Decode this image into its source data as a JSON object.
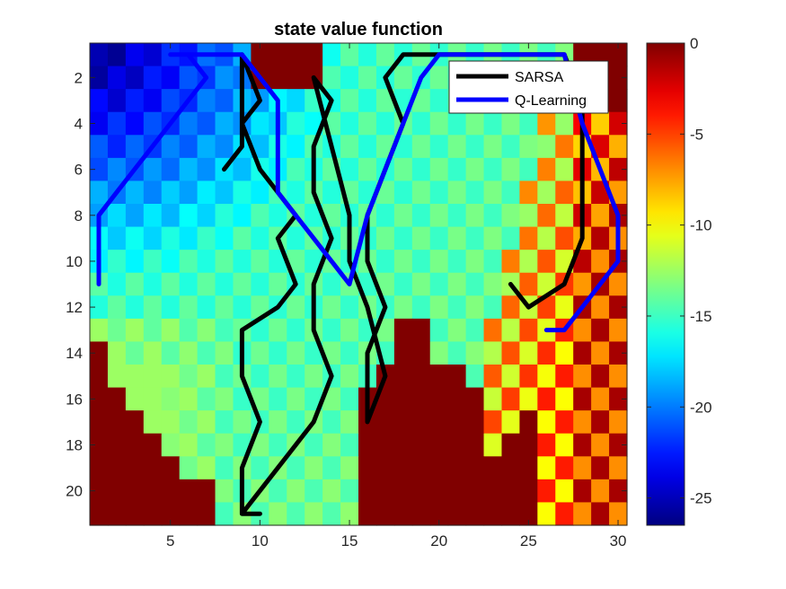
{
  "chart_data": {
    "type": "heatmap",
    "title": "state value function",
    "xlabel": "",
    "ylabel": "",
    "grid_cols": 30,
    "grid_rows": 21,
    "xlim": [
      0.5,
      30.5
    ],
    "ylim": [
      21.5,
      0.5
    ],
    "y_reversed": true,
    "x_ticks": [
      5,
      10,
      15,
      20,
      25,
      30
    ],
    "y_ticks": [
      2,
      4,
      6,
      8,
      10,
      12,
      14,
      16,
      18,
      20
    ],
    "colorbar": {
      "colormap": "jet",
      "range": [
        -26.5,
        0
      ],
      "ticks": [
        0,
        -5,
        -10,
        -15,
        -20,
        -25
      ]
    },
    "value_field_approx": {
      "description": "estimated from colormap",
      "region_walls_value": 0,
      "left_upper_region_min": -26,
      "center_region_approx": -15,
      "right_region_checkerboard": [
        -3,
        -11
      ]
    },
    "legend": {
      "location": "top-right",
      "entries": [
        "SARSA",
        "Q-Learning"
      ]
    },
    "series": [
      {
        "name": "SARSA",
        "color": "#000000",
        "x": [
          8,
          9,
          9,
          10,
          9,
          9,
          9,
          9,
          10,
          12,
          11,
          12,
          11,
          9,
          9,
          10,
          9,
          9,
          10,
          9,
          9,
          11,
          13,
          14,
          13,
          13,
          14,
          13,
          13,
          14,
          13,
          13,
          15,
          15,
          16,
          17,
          16,
          16,
          17,
          16,
          16,
          17,
          18,
          17,
          18,
          19,
          19,
          20,
          19,
          27,
          28,
          28,
          28,
          27,
          25,
          24
        ],
        "y": [
          6,
          5,
          4,
          3,
          1,
          1,
          3,
          4,
          6,
          8,
          9,
          11,
          12,
          13,
          15,
          17,
          19,
          21,
          21,
          21,
          21,
          19,
          17,
          15,
          13,
          11,
          9,
          7,
          5,
          3,
          2,
          2,
          8,
          10,
          12,
          15,
          17,
          14,
          12,
          10,
          8,
          6,
          4,
          2,
          1,
          1,
          1,
          1,
          1,
          1,
          3,
          5,
          9,
          11,
          12,
          11
        ]
      },
      {
        "name": "Q-Learning",
        "color": "#0000ff",
        "x": [
          1,
          1,
          2,
          3,
          4,
          5,
          6,
          7,
          6,
          5,
          9,
          10,
          11,
          11,
          12,
          13,
          14,
          15,
          16,
          17,
          18,
          19,
          20,
          27,
          28,
          29,
          30,
          30,
          29,
          28,
          27,
          26
        ],
        "y": [
          11,
          8,
          7,
          6,
          5,
          4,
          3,
          2,
          1,
          1,
          1,
          2,
          3,
          7,
          8,
          9,
          10,
          11,
          8,
          6,
          4,
          2,
          1,
          1,
          4,
          6,
          8,
          10,
          11,
          12,
          13,
          13
        ]
      }
    ]
  }
}
